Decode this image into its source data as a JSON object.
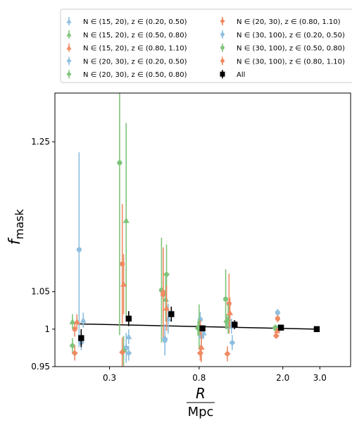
{
  "chart_data": {
    "type": "scatter",
    "ylabel": "f",
    "ylabel_sub": "mask",
    "xlabel": "R",
    "xlabel_unit": "Mpc",
    "xscale": "log",
    "xlim": [
      0.165,
      4.2
    ],
    "ylim": [
      0.95,
      1.315
    ],
    "yticks": [
      {
        "value": 0.95,
        "label": "0.95"
      },
      {
        "value": 1.0,
        "label": "1"
      },
      {
        "value": 1.05,
        "label": "1.05"
      },
      {
        "value": 1.25,
        "label": "1.25"
      }
    ],
    "xticks": [
      {
        "value": 0.3,
        "label": "0.3"
      },
      {
        "value": 0.8,
        "label": "0.8"
      },
      {
        "value": 2.0,
        "label": "2.0"
      },
      {
        "value": 3.0,
        "label": "3.0"
      }
    ],
    "colors": {
      "blue": "#8fbfe0",
      "green": "#7fc47a",
      "orange": "#ef8a62",
      "black": "#000000"
    },
    "legend": [
      {
        "label": "N ∈ (15, 20), z ∈ (0.20, 0.50)",
        "color": "#8fbfe0",
        "marker": "tri"
      },
      {
        "label": "N ∈ (15, 20), z ∈ (0.50, 0.80)",
        "color": "#7fc47a",
        "marker": "tri"
      },
      {
        "label": "N ∈ (15, 20), z ∈ (0.80, 1.10)",
        "color": "#ef8a62",
        "marker": "tri"
      },
      {
        "label": "N ∈ (20, 30), z ∈ (0.20, 0.50)",
        "color": "#8fbfe0",
        "marker": "diamond"
      },
      {
        "label": "N ∈ (20, 30), z ∈ (0.50, 0.80)",
        "color": "#7fc47a",
        "marker": "diamond"
      },
      {
        "label": "N ∈ (20, 30), z ∈ (0.80, 1.10)",
        "color": "#ef8a62",
        "marker": "diamond"
      },
      {
        "label": "N ∈ (30, 100), z ∈ (0.20, 0.50)",
        "color": "#8fbfe0",
        "marker": "circle"
      },
      {
        "label": "N ∈ (30, 100), z ∈ (0.50, 0.80)",
        "color": "#7fc47a",
        "marker": "circle"
      },
      {
        "label": "N ∈ (30, 100), z ∈ (0.80, 1.10)",
        "color": "#ef8a62",
        "marker": "circle"
      },
      {
        "label": "All",
        "color": "#000000",
        "marker": "square"
      }
    ],
    "fit_line": {
      "x": [
        0.21,
        2.9
      ],
      "y": [
        1.007,
        1.0
      ]
    },
    "series": [
      {
        "name": "All",
        "color": "#000000",
        "marker": "square",
        "x": [
          0.22,
          0.37,
          0.59,
          0.83,
          1.18,
          1.96,
          2.9
        ],
        "y": [
          0.988,
          1.014,
          1.02,
          1.001,
          1.006,
          1.002,
          1.0
        ],
        "err": [
          0.012,
          0.01,
          0.01,
          0.004,
          0.006,
          0.003,
          0.003
        ]
      },
      {
        "color": "#8fbfe0",
        "marker": "circle",
        "x": [
          0.215,
          0.36,
          0.55,
          0.81,
          1.1,
          1.89
        ],
        "y": [
          1.106,
          0.975,
          0.985,
          1.013,
          1.008,
          1.022
        ],
        "err": [
          0.13,
          0.02,
          0.02,
          0.01,
          0.01,
          0.005
        ]
      },
      {
        "color": "#7fc47a",
        "marker": "circle",
        "x": [
          0.335,
          0.53,
          0.8,
          1.07,
          1.85
        ],
        "y": [
          1.222,
          1.052,
          1.003,
          1.04,
          1.001
        ],
        "err": [
          0.23,
          0.07,
          0.03,
          0.04,
          0.005
        ]
      },
      {
        "color": "#ef8a62",
        "marker": "circle",
        "x": [
          0.205,
          0.345,
          0.54,
          0.81,
          1.11,
          1.89
        ],
        "y": [
          1.0,
          1.087,
          1.049,
          1.002,
          1.034,
          1.014
        ],
        "err": [
          0.01,
          0.08,
          0.06,
          0.01,
          0.04,
          0.005
        ]
      },
      {
        "color": "#8fbfe0",
        "marker": "diamond",
        "x": [
          0.22,
          0.37,
          0.55,
          0.82,
          1.15,
          1.92
        ],
        "y": [
          0.982,
          0.968,
          0.987,
          0.99,
          0.982,
          1.0
        ],
        "err": [
          0.01,
          0.01,
          0.02,
          0.01,
          0.01,
          0.004
        ]
      },
      {
        "color": "#7fc47a",
        "marker": "diamond",
        "x": [
          0.2,
          0.35,
          0.56,
          0.79,
          1.08,
          1.84
        ],
        "y": [
          0.978,
          0.971,
          1.073,
          1.001,
          1.01,
          1.002
        ],
        "err": [
          0.01,
          0.02,
          0.04,
          0.01,
          0.01,
          0.004
        ]
      },
      {
        "color": "#ef8a62",
        "marker": "diamond",
        "x": [
          0.205,
          0.345,
          0.54,
          0.81,
          1.09,
          1.86
        ],
        "y": [
          0.968,
          0.969,
          1.046,
          0.968,
          0.967,
          0.991
        ],
        "err": [
          0.01,
          0.02,
          0.03,
          0.01,
          0.01,
          0.003
        ]
      },
      {
        "color": "#8fbfe0",
        "marker": "tri",
        "x": [
          0.225,
          0.37,
          0.57,
          0.84,
          1.14,
          1.9
        ],
        "y": [
          1.012,
          0.99,
          1.014,
          0.995,
          1.004,
          1.002
        ],
        "err": [
          0.01,
          0.01,
          0.02,
          0.008,
          0.01,
          0.003
        ]
      },
      {
        "color": "#7fc47a",
        "marker": "tri",
        "x": [
          0.2,
          0.36,
          0.555,
          0.8,
          1.1,
          1.87
        ],
        "y": [
          1.01,
          1.145,
          1.04,
          1.003,
          1.014,
          1.001
        ],
        "err": [
          0.01,
          0.13,
          0.03,
          0.01,
          0.02,
          0.003
        ]
      },
      {
        "color": "#ef8a62",
        "marker": "tri",
        "x": [
          0.21,
          0.35,
          0.56,
          0.82,
          1.12,
          1.88
        ],
        "y": [
          1.01,
          1.06,
          1.028,
          0.976,
          1.022,
          0.998
        ],
        "err": [
          0.01,
          0.04,
          0.03,
          0.02,
          0.02,
          0.003
        ]
      }
    ]
  }
}
